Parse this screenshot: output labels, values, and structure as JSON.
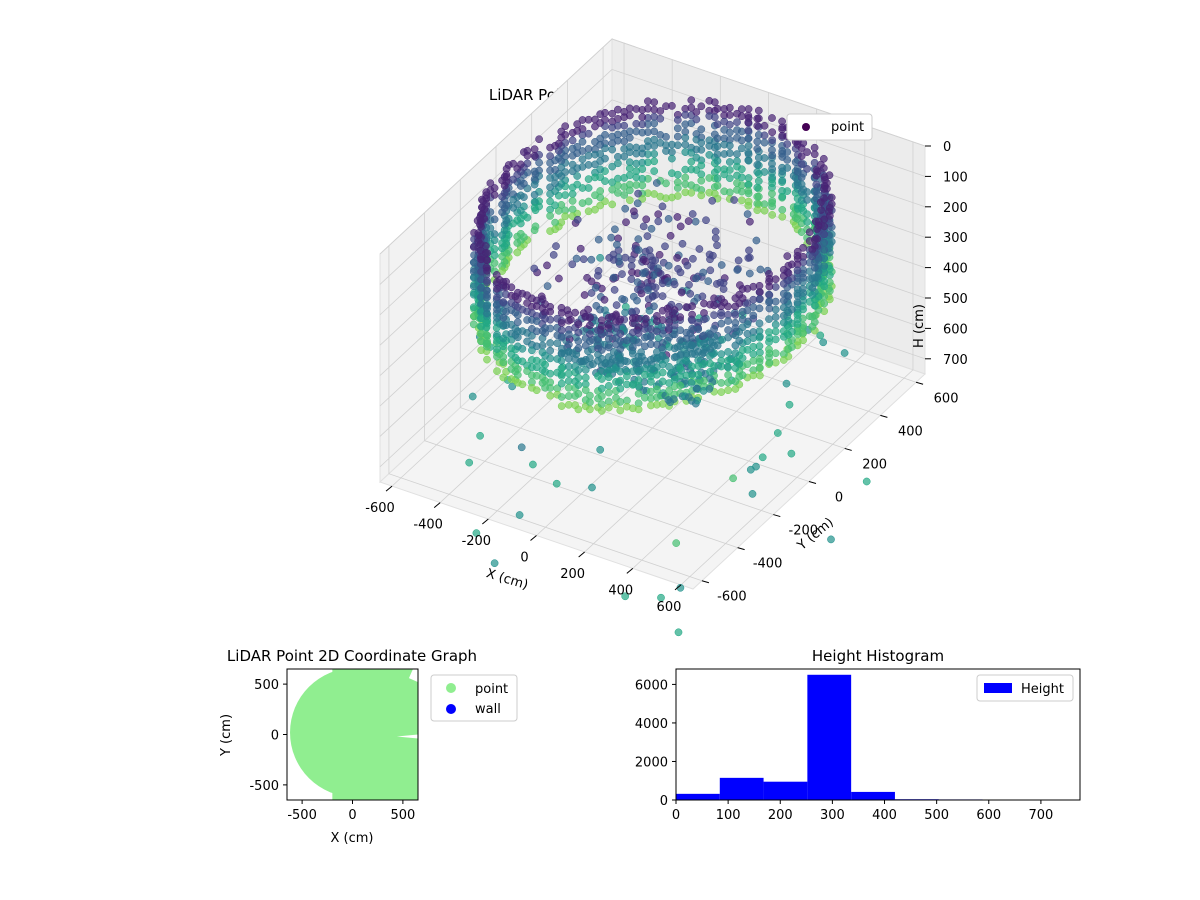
{
  "chart_data": [
    {
      "type": "scatter3d",
      "title": "LiDAR Point 3D Coordinate Graph",
      "xlabel": "X (cm)",
      "ylabel": "Y (cm)",
      "zlabel": "H (cm)",
      "xlim": [
        -650,
        650
      ],
      "ylim": [
        -650,
        650
      ],
      "zlim": [
        750,
        0
      ],
      "x_ticks": [
        -600,
        -400,
        -200,
        0,
        200,
        400,
        600
      ],
      "y_ticks": [
        -600,
        -400,
        -200,
        0,
        200,
        400,
        600
      ],
      "z_ticks": [
        0,
        100,
        200,
        300,
        400,
        500,
        600,
        700
      ],
      "z_inverted": true,
      "legend": {
        "labels": [
          "point"
        ],
        "colors": [
          "#440154"
        ],
        "placement": "upper-right"
      },
      "colormap": "viridis",
      "series": [
        {
          "name": "point",
          "description_shape": "ring of walls ~600cm radius at heights 0-350, scattered outliers below"
        }
      ],
      "grid": true
    },
    {
      "type": "scatter",
      "title": "LiDAR Point 2D Coordinate Graph",
      "xlabel": "X (cm)",
      "ylabel": "Y (cm)",
      "xlim": [
        -650,
        650
      ],
      "ylim": [
        -650,
        650
      ],
      "x_ticks": [
        -500,
        0,
        500
      ],
      "y_ticks": [
        -500,
        0,
        500
      ],
      "legend": {
        "labels": [
          "point",
          "wall"
        ],
        "colors": [
          "#90ee90",
          "#0000ff"
        ],
        "placement": "outside-right"
      },
      "series": [
        {
          "name": "point",
          "color": "#90ee90"
        },
        {
          "name": "wall",
          "color": "#0000ff"
        }
      ]
    },
    {
      "type": "bar",
      "title": "Height Histogram",
      "xlabel": "",
      "ylabel": "",
      "bin_edges": [
        0,
        84,
        168,
        252,
        336,
        420,
        504,
        588,
        672,
        756
      ],
      "values": [
        320,
        1150,
        950,
        6500,
        420,
        40,
        30,
        25,
        20
      ],
      "xlim": [
        0,
        775
      ],
      "ylim": [
        0,
        6800
      ],
      "x_ticks": [
        0,
        100,
        200,
        300,
        400,
        500,
        600,
        700
      ],
      "y_ticks": [
        0,
        2000,
        4000,
        6000
      ],
      "color": "#0000ff",
      "legend": {
        "labels": [
          "Height"
        ],
        "placement": "upper-right"
      }
    }
  ]
}
